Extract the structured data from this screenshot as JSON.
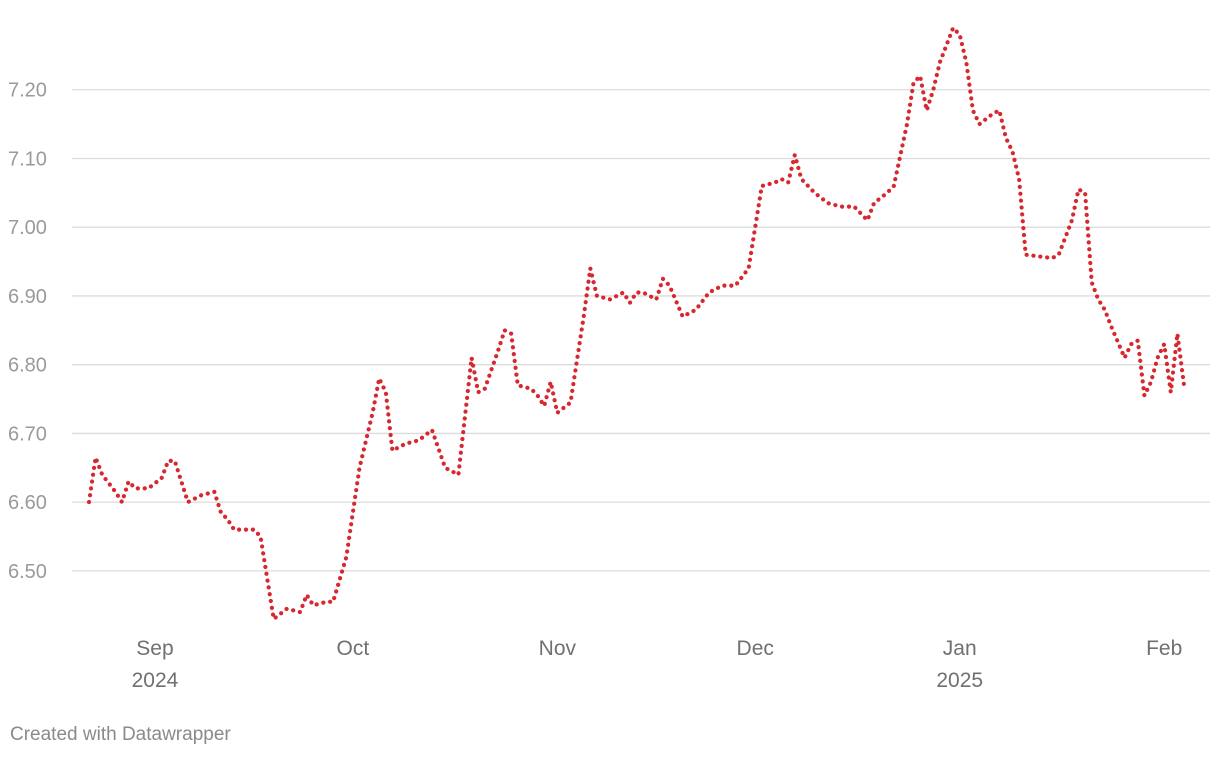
{
  "chart_data": {
    "type": "line",
    "ylim": [
      6.43,
      7.3
    ],
    "y_ticks": [
      "6.50",
      "6.60",
      "6.70",
      "6.80",
      "6.90",
      "7.00",
      "7.10",
      "7.20"
    ],
    "grid": true,
    "line_style": "dotted",
    "x_ticks": [
      {
        "date": "2024-09-01",
        "label": "Sep",
        "sublabel": "2024"
      },
      {
        "date": "2024-10-01",
        "label": "Oct",
        "sublabel": ""
      },
      {
        "date": "2024-11-01",
        "label": "Nov",
        "sublabel": ""
      },
      {
        "date": "2024-12-01",
        "label": "Dec",
        "sublabel": ""
      },
      {
        "date": "2025-01-01",
        "label": "Jan",
        "sublabel": "2025"
      },
      {
        "date": "2025-02-01",
        "label": "Feb",
        "sublabel": ""
      }
    ],
    "series": [
      {
        "color": "#d7282f",
        "points": [
          [
            "2024-08-22",
            6.6
          ],
          [
            "2024-08-23",
            6.665
          ],
          [
            "2024-08-24",
            6.64
          ],
          [
            "2024-08-26",
            6.615
          ],
          [
            "2024-08-27",
            6.6
          ],
          [
            "2024-08-28",
            6.63
          ],
          [
            "2024-08-29",
            6.62
          ],
          [
            "2024-08-31",
            6.62
          ],
          [
            "2024-09-02",
            6.635
          ],
          [
            "2024-09-03",
            6.66
          ],
          [
            "2024-09-04",
            6.66
          ],
          [
            "2024-09-06",
            6.6
          ],
          [
            "2024-09-08",
            6.61
          ],
          [
            "2024-09-10",
            6.615
          ],
          [
            "2024-09-11",
            6.585
          ],
          [
            "2024-09-12",
            6.575
          ],
          [
            "2024-09-13",
            6.56
          ],
          [
            "2024-09-16",
            6.56
          ],
          [
            "2024-09-17",
            6.55
          ],
          [
            "2024-09-19",
            6.43
          ],
          [
            "2024-09-21",
            6.445
          ],
          [
            "2024-09-23",
            6.44
          ],
          [
            "2024-09-24",
            6.465
          ],
          [
            "2024-09-25",
            6.45
          ],
          [
            "2024-09-27",
            6.455
          ],
          [
            "2024-09-28",
            6.455
          ],
          [
            "2024-09-30",
            6.52
          ],
          [
            "2024-10-02",
            6.65
          ],
          [
            "2024-10-04",
            6.73
          ],
          [
            "2024-10-05",
            6.78
          ],
          [
            "2024-10-06",
            6.76
          ],
          [
            "2024-10-07",
            6.675
          ],
          [
            "2024-10-09",
            6.685
          ],
          [
            "2024-10-11",
            6.69
          ],
          [
            "2024-10-13",
            6.705
          ],
          [
            "2024-10-15",
            6.65
          ],
          [
            "2024-10-17",
            6.64
          ],
          [
            "2024-10-19",
            6.81
          ],
          [
            "2024-10-20",
            6.76
          ],
          [
            "2024-10-21",
            6.765
          ],
          [
            "2024-10-23",
            6.82
          ],
          [
            "2024-10-24",
            6.85
          ],
          [
            "2024-10-25",
            6.845
          ],
          [
            "2024-10-26",
            6.77
          ],
          [
            "2024-10-28",
            6.765
          ],
          [
            "2024-10-29",
            6.755
          ],
          [
            "2024-10-30",
            6.74
          ],
          [
            "2024-10-31",
            6.775
          ],
          [
            "2024-11-01",
            6.73
          ],
          [
            "2024-11-03",
            6.745
          ],
          [
            "2024-11-05",
            6.87
          ],
          [
            "2024-11-06",
            6.94
          ],
          [
            "2024-11-07",
            6.9
          ],
          [
            "2024-11-09",
            6.895
          ],
          [
            "2024-11-11",
            6.905
          ],
          [
            "2024-11-12",
            6.89
          ],
          [
            "2024-11-13",
            6.905
          ],
          [
            "2024-11-14",
            6.905
          ],
          [
            "2024-11-16",
            6.895
          ],
          [
            "2024-11-17",
            6.925
          ],
          [
            "2024-11-18",
            6.915
          ],
          [
            "2024-11-20",
            6.87
          ],
          [
            "2024-11-22",
            6.88
          ],
          [
            "2024-11-24",
            6.905
          ],
          [
            "2024-11-26",
            6.915
          ],
          [
            "2024-11-28",
            6.915
          ],
          [
            "2024-11-30",
            6.94
          ],
          [
            "2024-12-02",
            7.06
          ],
          [
            "2024-12-04",
            7.065
          ],
          [
            "2024-12-05",
            7.07
          ],
          [
            "2024-12-06",
            7.065
          ],
          [
            "2024-12-07",
            7.105
          ],
          [
            "2024-12-08",
            7.07
          ],
          [
            "2024-12-10",
            7.05
          ],
          [
            "2024-12-12",
            7.035
          ],
          [
            "2024-12-14",
            7.03
          ],
          [
            "2024-12-16",
            7.03
          ],
          [
            "2024-12-18",
            7.01
          ],
          [
            "2024-12-19",
            7.035
          ],
          [
            "2024-12-21",
            7.05
          ],
          [
            "2024-12-22",
            7.06
          ],
          [
            "2024-12-24",
            7.15
          ],
          [
            "2024-12-25",
            7.21
          ],
          [
            "2024-12-26",
            7.22
          ],
          [
            "2024-12-27",
            7.17
          ],
          [
            "2024-12-28",
            7.2
          ],
          [
            "2024-12-29",
            7.24
          ],
          [
            "2024-12-31",
            7.29
          ],
          [
            "2025-01-01",
            7.28
          ],
          [
            "2025-01-02",
            7.24
          ],
          [
            "2025-01-03",
            7.17
          ],
          [
            "2025-01-04",
            7.15
          ],
          [
            "2025-01-06",
            7.165
          ],
          [
            "2025-01-07",
            7.17
          ],
          [
            "2025-01-08",
            7.13
          ],
          [
            "2025-01-09",
            7.11
          ],
          [
            "2025-01-10",
            7.07
          ],
          [
            "2025-01-11",
            6.96
          ],
          [
            "2025-01-15",
            6.955
          ],
          [
            "2025-01-16",
            6.96
          ],
          [
            "2025-01-18",
            7.01
          ],
          [
            "2025-01-19",
            7.055
          ],
          [
            "2025-01-20",
            7.05
          ],
          [
            "2025-01-21",
            6.92
          ],
          [
            "2025-01-22",
            6.895
          ],
          [
            "2025-01-23",
            6.88
          ],
          [
            "2025-01-24",
            6.855
          ],
          [
            "2025-01-26",
            6.81
          ],
          [
            "2025-01-27",
            6.83
          ],
          [
            "2025-01-28",
            6.835
          ],
          [
            "2025-01-29",
            6.755
          ],
          [
            "2025-01-30",
            6.775
          ],
          [
            "2025-01-31",
            6.81
          ],
          [
            "2025-02-01",
            6.83
          ],
          [
            "2025-02-02",
            6.76
          ],
          [
            "2025-02-03",
            6.845
          ],
          [
            "2025-02-04",
            6.77
          ]
        ]
      }
    ]
  },
  "credit": "Created with Datawrapper"
}
